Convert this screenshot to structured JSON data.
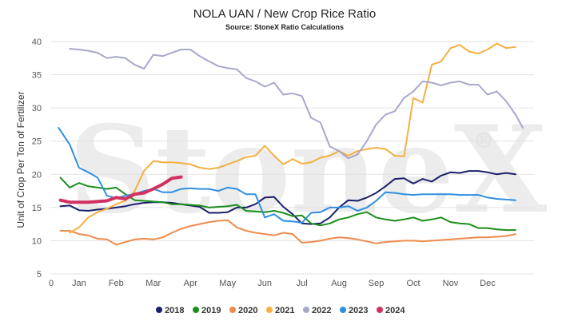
{
  "chart_data": {
    "type": "line",
    "title": "NOLA UAN / New Crop Rice Ratio",
    "subtitle": "Source: StoneX Ratio Calculations",
    "ylabel": "Unit of Crop Per Ton of Fertilizer",
    "xlabel": "",
    "watermark": "StoneX",
    "watermark_mark": "®",
    "ylim": [
      5,
      40
    ],
    "y_ticks": [
      5,
      10,
      15,
      20,
      25,
      30,
      35,
      40
    ],
    "x_range": [
      0,
      13
    ],
    "x_zero_label": "0",
    "x_ticks": [
      {
        "label": "Jan",
        "x": 0.75
      },
      {
        "label": "Feb",
        "x": 1.75
      },
      {
        "label": "Mar",
        "x": 2.75
      },
      {
        "label": "Apr",
        "x": 3.75
      },
      {
        "label": "May",
        "x": 4.75
      },
      {
        "label": "Jun",
        "x": 5.75
      },
      {
        "label": "Jul",
        "x": 6.75
      },
      {
        "label": "Aug",
        "x": 7.75
      },
      {
        "label": "Sep",
        "x": 8.75
      },
      {
        "label": "Oct",
        "x": 9.75
      },
      {
        "label": "Nov",
        "x": 10.75
      },
      {
        "label": "Dec",
        "x": 11.75
      }
    ],
    "grid": "horizontal",
    "legend_position": "bottom",
    "series": [
      {
        "name": "2018",
        "color": "#1b1f6b",
        "width": 2,
        "x": [
          0.25,
          0.5,
          0.75,
          1.0,
          1.25,
          1.5,
          1.75,
          2.0,
          2.25,
          2.5,
          2.75,
          3.0,
          3.25,
          3.5,
          3.75,
          4.0,
          4.25,
          4.5,
          4.75,
          5.0,
          5.25,
          5.5,
          5.75,
          6.0,
          6.25,
          6.5,
          6.75,
          7.0,
          7.25,
          7.5,
          7.75,
          8.0,
          8.25,
          8.5,
          8.75,
          9.0,
          9.25,
          9.5,
          9.75,
          10.0,
          10.25,
          10.5,
          10.75,
          11.0,
          11.25,
          11.5,
          11.75,
          12.0,
          12.25,
          12.5
        ],
        "values": [
          15.2,
          15.3,
          14.6,
          14.5,
          14.7,
          14.8,
          15.0,
          15.2,
          15.5,
          15.7,
          15.8,
          15.8,
          15.7,
          15.5,
          15.3,
          15.1,
          14.2,
          14.2,
          14.3,
          15.0,
          15.0,
          15.5,
          16.5,
          16.6,
          15.1,
          14.0,
          12.6,
          12.5,
          12.6,
          13.5,
          15.0,
          16.1,
          16.0,
          16.5,
          17.2,
          18.2,
          19.3,
          19.4,
          18.6,
          19.3,
          18.9,
          19.8,
          20.3,
          20.2,
          20.5,
          20.5,
          20.3,
          20.0,
          20.2,
          20.0
        ]
      },
      {
        "name": "2019",
        "color": "#1b8f1b",
        "width": 2,
        "x": [
          0.25,
          0.5,
          0.75,
          1.0,
          1.25,
          1.5,
          1.75,
          2.0,
          2.25,
          2.5,
          2.75,
          3.0,
          3.25,
          3.5,
          3.75,
          4.0,
          4.25,
          4.5,
          4.75,
          5.0,
          5.25,
          5.5,
          5.75,
          6.0,
          6.25,
          6.5,
          6.75,
          7.0,
          7.25,
          7.5,
          7.75,
          8.0,
          8.25,
          8.5,
          8.75,
          9.0,
          9.25,
          9.5,
          9.75,
          10.0,
          10.25,
          10.5,
          10.75,
          11.0,
          11.25,
          11.5,
          11.75,
          12.0,
          12.25,
          12.5
        ],
        "values": [
          19.5,
          18.0,
          18.7,
          18.2,
          18.0,
          17.8,
          18.0,
          17.0,
          16.1,
          16.0,
          15.9,
          15.8,
          15.5,
          15.5,
          15.4,
          15.3,
          15.0,
          15.1,
          15.2,
          15.4,
          14.5,
          14.4,
          14.3,
          14.5,
          14.2,
          13.7,
          13.8,
          12.6,
          12.3,
          12.6,
          13.2,
          13.5,
          14.0,
          14.3,
          13.5,
          13.2,
          13.0,
          13.2,
          13.5,
          13.0,
          13.2,
          13.5,
          12.8,
          12.6,
          12.5,
          11.9,
          11.9,
          11.7,
          11.6,
          11.6
        ]
      },
      {
        "name": "2020",
        "color": "#f08a4b",
        "width": 2,
        "x": [
          0.25,
          0.5,
          0.75,
          1.0,
          1.25,
          1.5,
          1.75,
          2.0,
          2.25,
          2.5,
          2.75,
          3.0,
          3.25,
          3.5,
          3.75,
          4.0,
          4.25,
          4.5,
          4.75,
          5.0,
          5.25,
          5.5,
          5.75,
          6.0,
          6.25,
          6.5,
          6.75,
          7.0,
          7.25,
          7.5,
          7.75,
          8.0,
          8.25,
          8.5,
          8.75,
          9.0,
          9.25,
          9.5,
          9.75,
          10.0,
          10.25,
          10.5,
          10.75,
          11.0,
          11.25,
          11.5,
          11.75,
          12.0,
          12.25,
          12.5
        ],
        "values": [
          11.5,
          11.5,
          11.0,
          10.8,
          10.3,
          10.2,
          9.4,
          9.8,
          10.2,
          10.3,
          10.2,
          10.5,
          11.2,
          11.8,
          12.2,
          12.5,
          12.8,
          13.0,
          13.1,
          12.0,
          11.5,
          11.2,
          11.0,
          10.8,
          11.2,
          11.0,
          9.7,
          9.8,
          10.0,
          10.3,
          10.5,
          10.4,
          10.2,
          9.9,
          9.6,
          9.8,
          9.9,
          10.0,
          10.0,
          9.9,
          10.0,
          10.1,
          10.2,
          10.3,
          10.4,
          10.5,
          10.5,
          10.6,
          10.7,
          11.0
        ]
      },
      {
        "name": "2021",
        "color": "#f4b043",
        "width": 2,
        "x": [
          0.5,
          0.75,
          1.0,
          1.25,
          1.5,
          1.75,
          2.0,
          2.25,
          2.5,
          2.75,
          3.0,
          3.25,
          3.5,
          3.75,
          4.0,
          4.25,
          4.5,
          4.75,
          5.0,
          5.25,
          5.5,
          5.75,
          6.0,
          6.25,
          6.5,
          6.75,
          7.0,
          7.25,
          7.5,
          7.75,
          8.0,
          8.25,
          8.5,
          8.75,
          9.0,
          9.25,
          9.5,
          9.75,
          10.0,
          10.25,
          10.5,
          10.75,
          11.0,
          11.25,
          11.5,
          11.75,
          12.0,
          12.25,
          12.5
        ],
        "values": [
          11.2,
          12.0,
          13.5,
          14.3,
          14.8,
          15.5,
          16.0,
          17.5,
          20.5,
          22.0,
          21.8,
          21.8,
          21.7,
          21.5,
          21.0,
          20.8,
          21.0,
          21.5,
          22.0,
          22.6,
          22.8,
          24.3,
          22.8,
          21.5,
          22.3,
          21.6,
          21.8,
          22.5,
          22.8,
          23.5,
          22.8,
          23.5,
          23.8,
          24.0,
          23.8,
          22.8,
          22.7,
          31.5,
          30.8,
          36.5,
          37.0,
          39.0,
          39.5,
          38.5,
          38.2,
          38.8,
          39.7,
          39.0,
          39.2
        ]
      },
      {
        "name": "2022",
        "color": "#a8a8cc",
        "width": 2,
        "x": [
          0.5,
          0.75,
          1.0,
          1.25,
          1.5,
          1.75,
          2.0,
          2.25,
          2.5,
          2.75,
          3.0,
          3.25,
          3.5,
          3.75,
          4.0,
          4.25,
          4.5,
          4.75,
          5.0,
          5.25,
          5.5,
          5.75,
          6.0,
          6.25,
          6.5,
          6.75,
          7.0,
          7.25,
          7.5,
          7.75,
          8.0,
          8.25,
          8.5,
          8.75,
          9.0,
          9.25,
          9.5,
          9.75,
          10.0,
          10.25,
          10.5,
          10.75,
          11.0,
          11.25,
          11.5,
          11.75,
          12.0,
          12.25,
          12.5,
          12.7
        ],
        "values": [
          38.9,
          38.8,
          38.6,
          38.3,
          37.5,
          37.7,
          37.5,
          36.5,
          35.9,
          38.0,
          37.8,
          38.3,
          38.8,
          38.8,
          37.8,
          37.0,
          36.3,
          36.0,
          35.8,
          34.5,
          34.0,
          33.2,
          33.8,
          32.0,
          32.2,
          31.8,
          28.5,
          27.8,
          24.2,
          23.5,
          22.4,
          23.0,
          25.0,
          27.5,
          29.0,
          29.5,
          31.5,
          32.5,
          34.0,
          33.8,
          33.4,
          33.8,
          34.0,
          33.5,
          33.5,
          32.0,
          32.5,
          31.0,
          29.0,
          27.0
        ]
      },
      {
        "name": "2023",
        "color": "#2f8fe0",
        "width": 2,
        "x": [
          0.2,
          0.5,
          0.75,
          1.0,
          1.25,
          1.5,
          1.75,
          2.0,
          2.25,
          2.5,
          2.75,
          3.0,
          3.25,
          3.5,
          3.75,
          4.0,
          4.25,
          4.5,
          4.75,
          5.0,
          5.25,
          5.5,
          5.75,
          6.0,
          6.25,
          6.5,
          6.75,
          7.0,
          7.25,
          7.5,
          7.75,
          8.0,
          8.25,
          8.5,
          8.75,
          9.0,
          9.25,
          9.5,
          9.75,
          10.0,
          10.25,
          10.5,
          10.75,
          11.0,
          11.25,
          11.5,
          11.75,
          12.0,
          12.25,
          12.5
        ],
        "values": [
          27.0,
          24.5,
          21.0,
          20.3,
          19.5,
          16.8,
          16.4,
          16.8,
          17.0,
          17.5,
          17.8,
          17.3,
          17.3,
          17.8,
          17.9,
          17.8,
          17.8,
          17.5,
          18.0,
          17.8,
          17.0,
          17.0,
          13.5,
          14.0,
          13.0,
          12.9,
          12.7,
          14.2,
          14.3,
          15.0,
          15.0,
          15.2,
          14.5,
          15.0,
          16.0,
          17.3,
          17.2,
          17.0,
          16.9,
          17.0,
          17.0,
          17.0,
          17.0,
          16.9,
          16.9,
          16.9,
          16.5,
          16.3,
          16.2,
          16.1
        ]
      },
      {
        "name": "2024",
        "color": "#d23060",
        "width": 4,
        "x": [
          0.25,
          0.5,
          0.75,
          1.0,
          1.25,
          1.5,
          1.75,
          2.0,
          2.25,
          2.5,
          2.75,
          3.0,
          3.25,
          3.5
        ],
        "values": [
          16.1,
          15.8,
          15.8,
          15.8,
          15.9,
          16.0,
          16.5,
          16.3,
          17.0,
          17.2,
          17.8,
          18.5,
          19.4,
          19.6
        ]
      }
    ]
  }
}
